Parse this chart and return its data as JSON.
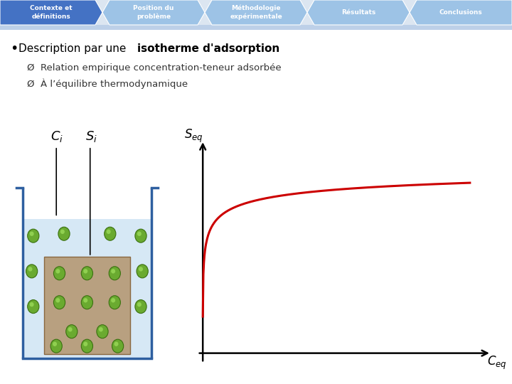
{
  "nav_items": [
    "Contexte et\ndéfinitions",
    "Position du\nproblème",
    "Méthodologie\nexpérimentale",
    "Résultats",
    "Conclusions"
  ],
  "nav_active": 0,
  "nav_color_active": "#4472c4",
  "nav_color_inactive": "#9dc3e6",
  "nav_bg": "#dce6f1",
  "slide_bg": "white",
  "bullet_normal": "Description par une ",
  "bullet_bold": "isotherme d’adsorption",
  "sub1": "Relation empirique concentration-teneur adsorbée",
  "sub2": "À l’équilibre thermodynamique",
  "curve_color": "#cc0000",
  "beaker_fill": "#d6e8f5",
  "beaker_border": "#2e5fa0",
  "rock_fill": "#b8a080",
  "particle_color": "#6aaa30",
  "ci_label": "$C_i$",
  "si_label": "$S_i$"
}
